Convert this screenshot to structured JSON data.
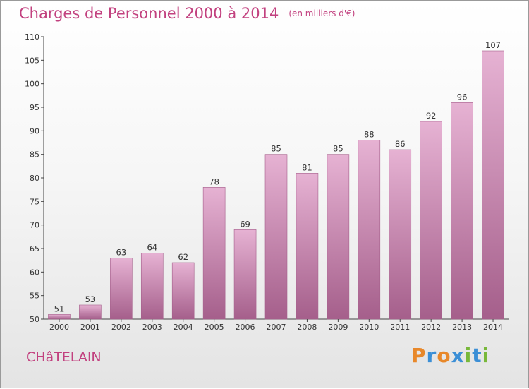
{
  "title": "Charges de Personnel 2000 à 2014",
  "unit_note": "(en milliers d'€)",
  "commune": "CHâTELAIN",
  "brand": {
    "letters": [
      "P",
      "r",
      "o",
      "x",
      "i",
      "t",
      "i"
    ],
    "colors": [
      "#e8882a",
      "#3b8fd6",
      "#e8882a",
      "#3b8fd6",
      "#78b83a",
      "#3b8fd6",
      "#78b83a"
    ]
  },
  "colors": {
    "bar": "#c87aa8",
    "bar_light": "#e6b2d3",
    "bar_dark": "#a55f8b",
    "accent": "#c2417f"
  },
  "chart_data": {
    "type": "bar",
    "categories": [
      "2000",
      "2001",
      "2002",
      "2003",
      "2004",
      "2005",
      "2006",
      "2007",
      "2008",
      "2009",
      "2010",
      "2011",
      "2012",
      "2013",
      "2014"
    ],
    "values": [
      51,
      53,
      63,
      64,
      62,
      78,
      69,
      85,
      81,
      85,
      88,
      86,
      92,
      96,
      107
    ],
    "ylim": [
      50,
      110
    ],
    "yticks": [
      50,
      55,
      60,
      65,
      70,
      75,
      80,
      85,
      90,
      95,
      100,
      105,
      110
    ],
    "grid": false,
    "legend": "none"
  }
}
